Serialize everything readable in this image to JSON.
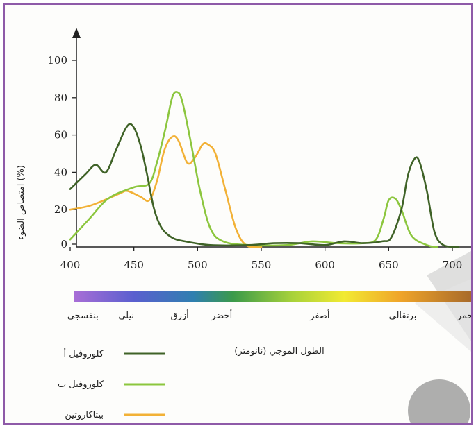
{
  "chart_data": {
    "type": "line",
    "ylabel": "امتصاص الضوء (%)",
    "xlabel": "الطول الموجي (نانومتر)",
    "xlim": [
      400,
      710
    ],
    "ylim": [
      0,
      100
    ],
    "x_ticks": [
      400,
      450,
      500,
      550,
      600,
      650,
      700
    ],
    "y_ticks": [
      0,
      20,
      40,
      60,
      80,
      100
    ],
    "grid": false,
    "legend_position": "bottom-left",
    "series": [
      {
        "name": "كلوروفيل أ",
        "color": "#3f6227",
        "points": [
          [
            400,
            31
          ],
          [
            412,
            39
          ],
          [
            420,
            44
          ],
          [
            428,
            40
          ],
          [
            436,
            52
          ],
          [
            444,
            64
          ],
          [
            449,
            65
          ],
          [
            455,
            55
          ],
          [
            460,
            40
          ],
          [
            466,
            20
          ],
          [
            472,
            10
          ],
          [
            480,
            5
          ],
          [
            490,
            3
          ],
          [
            510,
            1
          ],
          [
            540,
            1
          ],
          [
            560,
            2
          ],
          [
            580,
            2
          ],
          [
            600,
            1
          ],
          [
            615,
            3
          ],
          [
            630,
            2
          ],
          [
            645,
            3
          ],
          [
            652,
            5
          ],
          [
            660,
            20
          ],
          [
            665,
            38
          ],
          [
            670,
            47
          ],
          [
            674,
            46
          ],
          [
            680,
            30
          ],
          [
            686,
            8
          ],
          [
            693,
            1
          ],
          [
            705,
            0
          ]
        ]
      },
      {
        "name": "كلوروفيل ب",
        "color": "#8cc63e",
        "points": [
          [
            400,
            4
          ],
          [
            415,
            15
          ],
          [
            430,
            26
          ],
          [
            450,
            32
          ],
          [
            462,
            34
          ],
          [
            468,
            45
          ],
          [
            475,
            64
          ],
          [
            480,
            80
          ],
          [
            484,
            83
          ],
          [
            488,
            78
          ],
          [
            495,
            55
          ],
          [
            502,
            30
          ],
          [
            510,
            10
          ],
          [
            520,
            3
          ],
          [
            540,
            1
          ],
          [
            570,
            1
          ],
          [
            590,
            3
          ],
          [
            610,
            2
          ],
          [
            630,
            2
          ],
          [
            640,
            4
          ],
          [
            646,
            15
          ],
          [
            650,
            25
          ],
          [
            655,
            26
          ],
          [
            660,
            20
          ],
          [
            668,
            6
          ],
          [
            680,
            1
          ],
          [
            688,
            0
          ]
        ]
      },
      {
        "name": "بيتاكاروتين",
        "color": "#f2b136",
        "points": [
          [
            400,
            20
          ],
          [
            415,
            22
          ],
          [
            430,
            26
          ],
          [
            440,
            29
          ],
          [
            445,
            30
          ],
          [
            455,
            27
          ],
          [
            462,
            25
          ],
          [
            468,
            35
          ],
          [
            474,
            52
          ],
          [
            480,
            59
          ],
          [
            485,
            57
          ],
          [
            492,
            45
          ],
          [
            498,
            48
          ],
          [
            504,
            55
          ],
          [
            508,
            55
          ],
          [
            514,
            50
          ],
          [
            522,
            30
          ],
          [
            530,
            10
          ],
          [
            538,
            1
          ],
          [
            550,
            0
          ]
        ]
      }
    ],
    "spectrum_labels": [
      {
        "label": "بنفسجي",
        "x": 410
      },
      {
        "label": "نيلي",
        "x": 444
      },
      {
        "label": "أزرق",
        "x": 486
      },
      {
        "label": "أخضر",
        "x": 519
      },
      {
        "label": "أصفر",
        "x": 596
      },
      {
        "label": "برتقالي",
        "x": 661
      },
      {
        "label": "أحمر",
        "x": 728
      }
    ]
  }
}
